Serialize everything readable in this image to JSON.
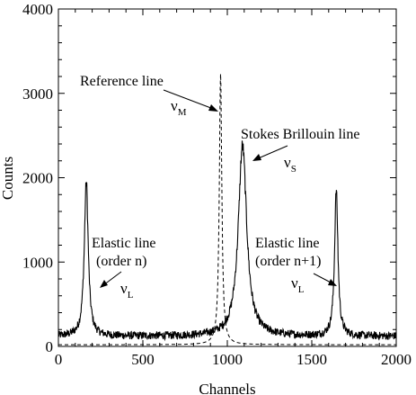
{
  "chart_data": {
    "type": "line",
    "xlabel": "Channels",
    "ylabel": "Counts",
    "xlim": [
      0,
      2000
    ],
    "ylim": [
      0,
      4000
    ],
    "xticks": [
      0,
      500,
      1000,
      1500,
      2000
    ],
    "yticks": [
      0,
      1000,
      2000,
      3000,
      4000
    ],
    "grid": false,
    "legend": "none",
    "series": [
      {
        "style": "solid",
        "baseline": 120,
        "noise_amplitude": 45,
        "peaks": [
          {
            "x": 165,
            "y": 1950
          },
          {
            "x": 1090,
            "y": 2380
          },
          {
            "x": 1645,
            "y": 1850
          }
        ]
      },
      {
        "style": "dashed",
        "baseline": 20,
        "peaks": [
          {
            "x": 960,
            "y": 3230
          }
        ]
      }
    ],
    "annotations": {
      "reference": {
        "text": "Reference line",
        "symbol": "ν",
        "subscript": "M"
      },
      "stokes": {
        "text": "Stokes Brillouin line",
        "symbol": "ν",
        "subscript": "S"
      },
      "elastic_left": {
        "line1": "Elastic line",
        "line2": "(order n)",
        "symbol": "ν",
        "subscript": "L"
      },
      "elastic_right": {
        "line1": "Elastic line",
        "line2": "(order n+1)",
        "symbol": "ν",
        "subscript": "L"
      }
    }
  }
}
